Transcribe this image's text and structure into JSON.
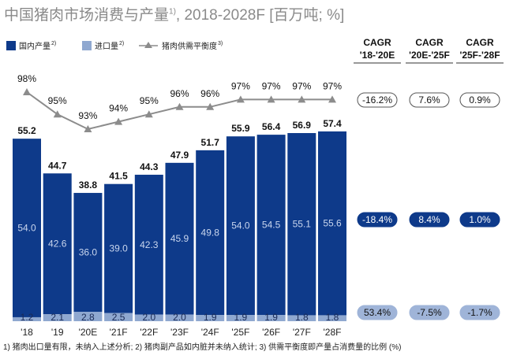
{
  "title": {
    "main": "中国猪肉市场消费与产量",
    "sup": "1)",
    "rest": ", 2018-2028F [百万吨; %]"
  },
  "footnote": "1) 猪肉出口量有限，未纳入上述分析; 2) 猪肉副产品如内脏并未纳入统计; 3) 供需平衡度即产量占消费量的比例 (%)",
  "legend": [
    {
      "label": "国内产量",
      "sup": "2)"
    },
    {
      "label": "进口量",
      "sup": "2)"
    },
    {
      "label": "猪肉供需平衡度",
      "sup": "3)"
    }
  ],
  "colors": {
    "domestic": "#0e3a8a",
    "imports": "#8fa8d0",
    "line": "#8c8c8c",
    "pill_dark": "#0e3a8a",
    "pill_light": "#9fb4d8"
  },
  "chart_data": {
    "type": "bar",
    "stacked": true,
    "categories": [
      "'18",
      "'19",
      "'20E",
      "'21F",
      "'22F",
      "'23F",
      "'24F",
      "'25F",
      "'26F",
      "'27F",
      "'28F"
    ],
    "series": [
      {
        "name": "国内产量",
        "values": [
          54.0,
          42.6,
          36.0,
          39.0,
          42.3,
          45.9,
          49.8,
          54.0,
          54.5,
          55.1,
          55.6
        ]
      },
      {
        "name": "进口量",
        "values": [
          1.2,
          2.1,
          2.8,
          2.5,
          2.0,
          2.0,
          1.9,
          1.9,
          1.9,
          1.8,
          1.8
        ]
      }
    ],
    "totals": [
      55.2,
      44.7,
      38.8,
      41.5,
      44.3,
      47.9,
      51.7,
      55.9,
      56.4,
      56.9,
      57.4
    ],
    "line": {
      "name": "猪肉供需平衡度",
      "values": [
        98,
        95,
        93,
        94,
        95,
        96,
        96,
        97,
        97,
        97,
        97
      ],
      "labels": [
        "98%",
        "95%",
        "93%",
        "94%",
        "95%",
        "96%",
        "96%",
        "97%",
        "97%",
        "97%",
        "97%"
      ]
    },
    "cagr": {
      "headers": [
        [
          "CAGR",
          "'18-'20E"
        ],
        [
          "CAGR",
          "'20E-'25F"
        ],
        [
          "CAGR",
          "'25F-'28F"
        ]
      ],
      "balance": [
        "-16.2%",
        "7.6%",
        "0.9%"
      ],
      "domestic": [
        "-18.4%",
        "8.4%",
        "1.0%"
      ],
      "imports": [
        "53.4%",
        "-7.5%",
        "-1.7%"
      ]
    }
  }
}
